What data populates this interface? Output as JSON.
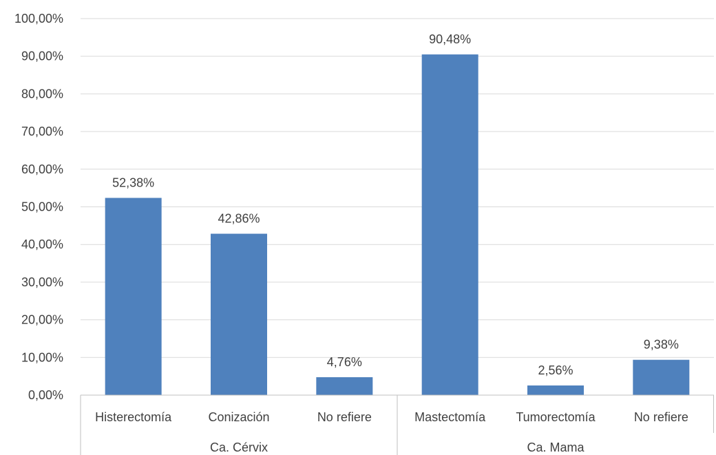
{
  "chart_data": {
    "type": "bar",
    "groups": [
      {
        "name": "Ca. Cérvix",
        "categories": [
          "Histerectomía",
          "Conización",
          "No refiere"
        ]
      },
      {
        "name": "Ca. Mama",
        "categories": [
          "Mastectomía",
          "Tumorectomía",
          "No refiere"
        ]
      }
    ],
    "categories": [
      "Histerectomía",
      "Conización",
      "No refiere",
      "Mastectomía",
      "Tumorectomía",
      "No refiere"
    ],
    "values": [
      52.38,
      42.86,
      4.76,
      90.48,
      2.56,
      9.38
    ],
    "data_labels": [
      "52,38%",
      "42,86%",
      "4,76%",
      "90,48%",
      "2,56%",
      "9,38%"
    ],
    "y_ticks": [
      "0,00%",
      "10,00%",
      "20,00%",
      "30,00%",
      "40,00%",
      "50,00%",
      "60,00%",
      "70,00%",
      "80,00%",
      "90,00%",
      "100,00%"
    ],
    "ylim": [
      0,
      100
    ],
    "grid": true,
    "legend": "none",
    "colors": {
      "bar": "#4F81BD",
      "grid": "#D9D9D9",
      "axis": "#BFBFBF",
      "text": "#404040"
    }
  }
}
